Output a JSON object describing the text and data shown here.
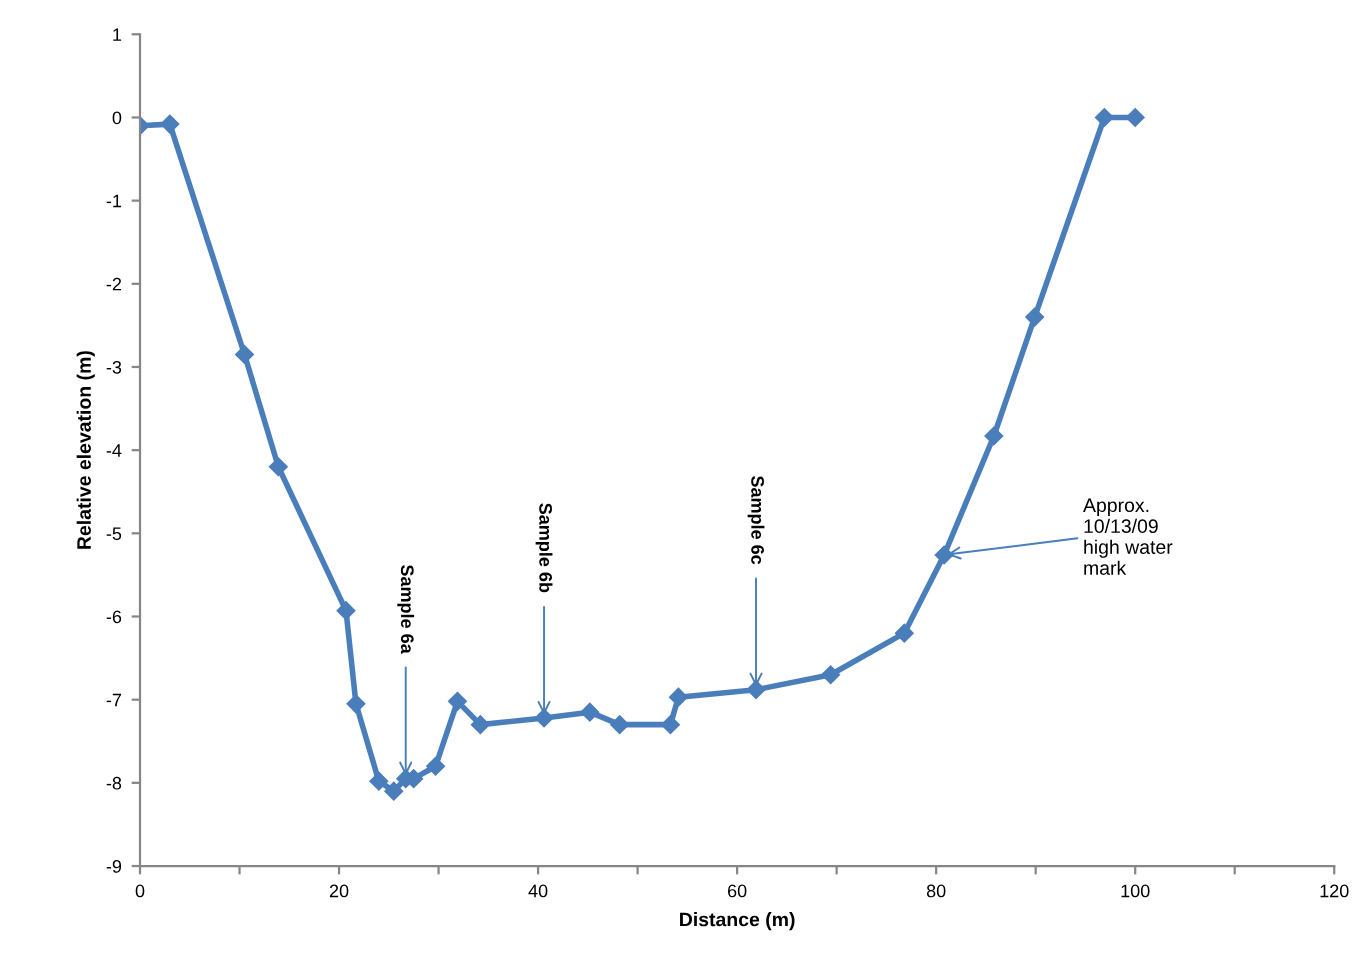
{
  "chart_data": {
    "type": "line",
    "xlabel": "Distance (m)",
    "ylabel": "Relative elevation (m)",
    "x": [
      0,
      3,
      10.5,
      13.9,
      20.7,
      21.7,
      24.0,
      25.5,
      26.7,
      27.5,
      29.7,
      31.9,
      34.2,
      40.6,
      45.2,
      48.2,
      53.3,
      54.1,
      61.9,
      69.4,
      76.8,
      80.8,
      85.8,
      89.9,
      96.9,
      100
    ],
    "series": [
      {
        "color": "#4a7ebb",
        "values": [
          -0.1,
          -0.08,
          -2.85,
          -4.2,
          -5.93,
          -7.05,
          -7.98,
          -8.1,
          -7.95,
          -7.95,
          -7.8,
          -7.02,
          -7.3,
          -7.22,
          -7.15,
          -7.3,
          -7.3,
          -6.97,
          -6.88,
          -6.7,
          -6.2,
          -5.26,
          -3.83,
          -2.4,
          0.0,
          0.0
        ]
      }
    ],
    "xlim": [
      0,
      120
    ],
    "ylim": [
      -9,
      1
    ],
    "xticks": [
      0,
      {
        "value": 10,
        "label": null
      },
      20,
      {
        "value": 30,
        "label": null
      },
      40,
      {
        "value": 50,
        "label": null
      },
      60,
      {
        "value": 70,
        "label": null
      },
      80,
      {
        "value": 90,
        "label": null
      },
      100,
      {
        "value": 110,
        "label": null
      },
      120
    ],
    "yticks": [
      1,
      0,
      -1,
      -2,
      -3,
      -4,
      -5,
      -6,
      -7,
      -8,
      -9
    ],
    "marker": "diamond",
    "line_style": "solid",
    "grid": false,
    "legend": false,
    "annotations": [
      {
        "text": "Sample 6a",
        "x": 26.7,
        "y": -7.95
      },
      {
        "text": "Sample 6b",
        "x": 40.6,
        "y": -7.22
      },
      {
        "text": "Sample 6c",
        "x": 61.9,
        "y": -6.88
      },
      {
        "text": "Approx.\n10/13/09\nhigh water\nmark",
        "x": 80.8,
        "y": -5.26
      }
    ]
  }
}
